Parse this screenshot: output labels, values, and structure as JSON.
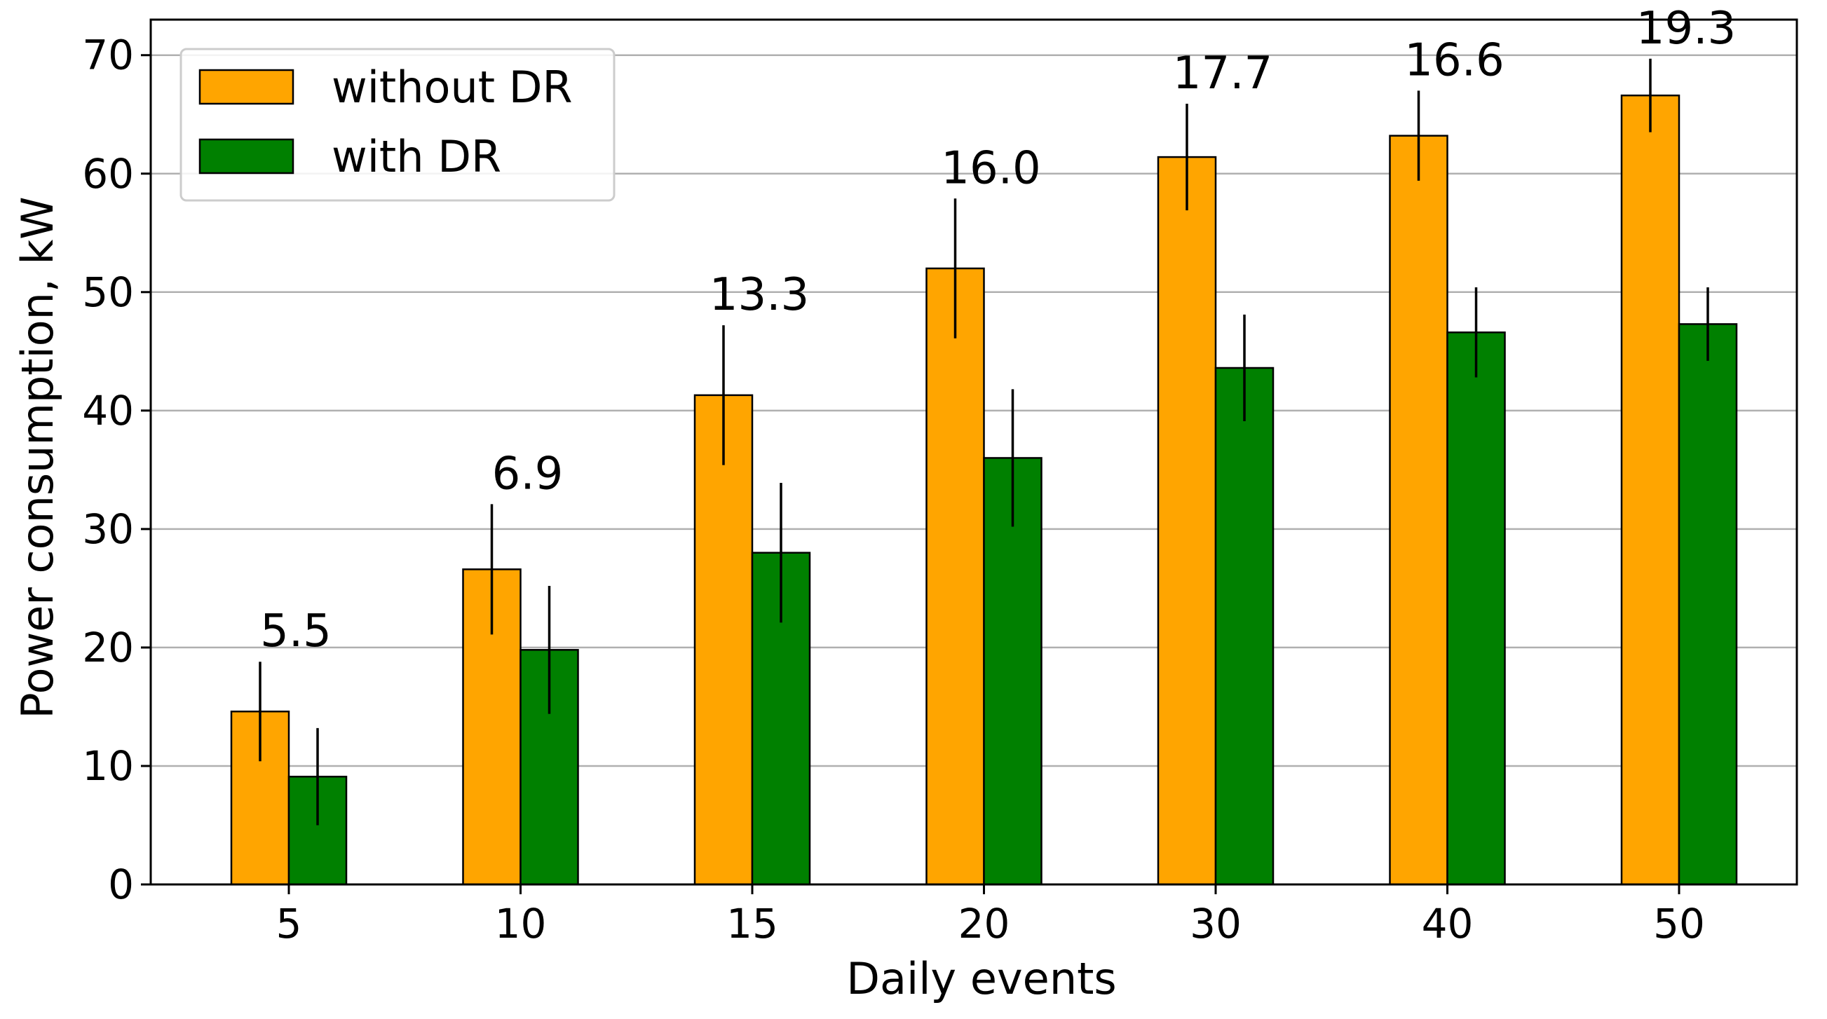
{
  "chart_data": {
    "type": "bar",
    "title": "",
    "xlabel": "Daily events",
    "ylabel": "Power consumption, kW",
    "categories": [
      "5",
      "10",
      "15",
      "20",
      "30",
      "40",
      "50"
    ],
    "ylim": [
      0,
      73
    ],
    "yticks": [
      0,
      10,
      20,
      30,
      40,
      50,
      60,
      70
    ],
    "grid": "horizontal",
    "legend_position": "top-left",
    "series": [
      {
        "name": "without DR",
        "color": "#FFA500",
        "values": [
          14.6,
          26.6,
          41.3,
          52.0,
          61.4,
          63.2,
          66.6
        ],
        "errors": [
          4.2,
          5.5,
          5.9,
          5.9,
          4.5,
          3.8,
          3.1
        ]
      },
      {
        "name": "with DR",
        "color": "#008000",
        "values": [
          9.1,
          19.8,
          28.0,
          36.0,
          43.6,
          46.6,
          47.3
        ],
        "errors": [
          4.1,
          5.4,
          5.9,
          5.8,
          4.5,
          3.8,
          3.1
        ]
      }
    ],
    "annotations": [
      "5.5",
      "6.9",
      "13.3",
      "16.0",
      "17.7",
      "16.6",
      "19.3"
    ]
  }
}
